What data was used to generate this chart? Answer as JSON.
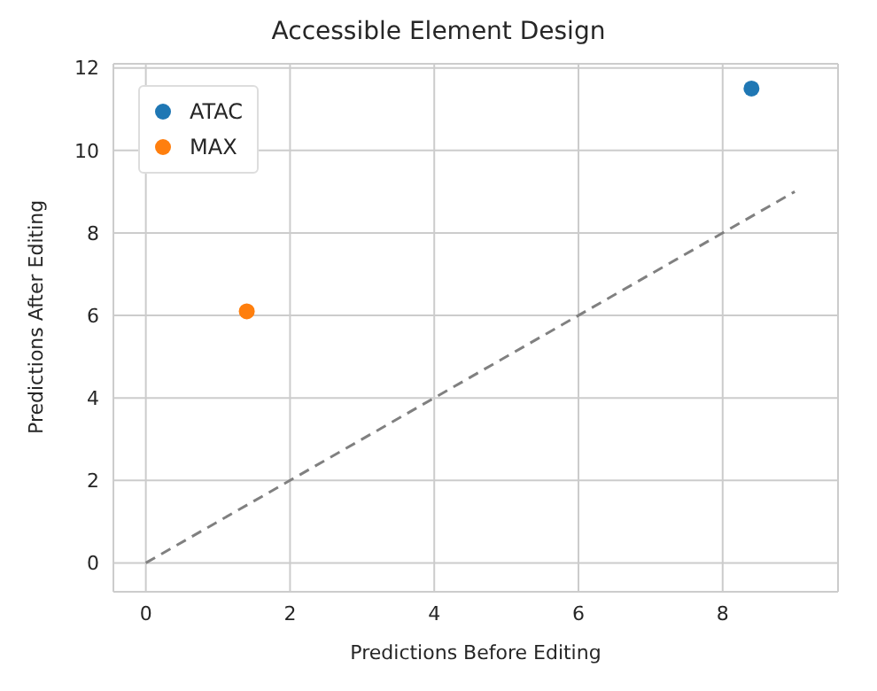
{
  "chart_data": {
    "type": "scatter",
    "title": "Accessible Element Design",
    "xlabel": "Predictions Before Editing",
    "ylabel": "Predictions After Editing",
    "series": [
      {
        "name": "ATAC",
        "color": "#1f77b4",
        "x": [
          8.4
        ],
        "values": [
          11.5
        ]
      },
      {
        "name": "MAX",
        "color": "#ff7f0e",
        "x": [
          1.4
        ],
        "values": [
          6.1
        ]
      },
      {
        "type": "line",
        "color": "#808080",
        "line_style": "dashed",
        "marker": "none",
        "x": [
          0,
          9
        ],
        "values": [
          0,
          9
        ]
      }
    ],
    "xlim": [
      -0.45,
      9.6
    ],
    "xticks": [
      0,
      2,
      4,
      6,
      8
    ],
    "ylim": [
      -0.7,
      12.1
    ],
    "yticks": [
      0,
      2,
      4,
      6,
      8,
      10,
      12
    ],
    "grid": true,
    "legend": "top left",
    "marker": "circle"
  }
}
